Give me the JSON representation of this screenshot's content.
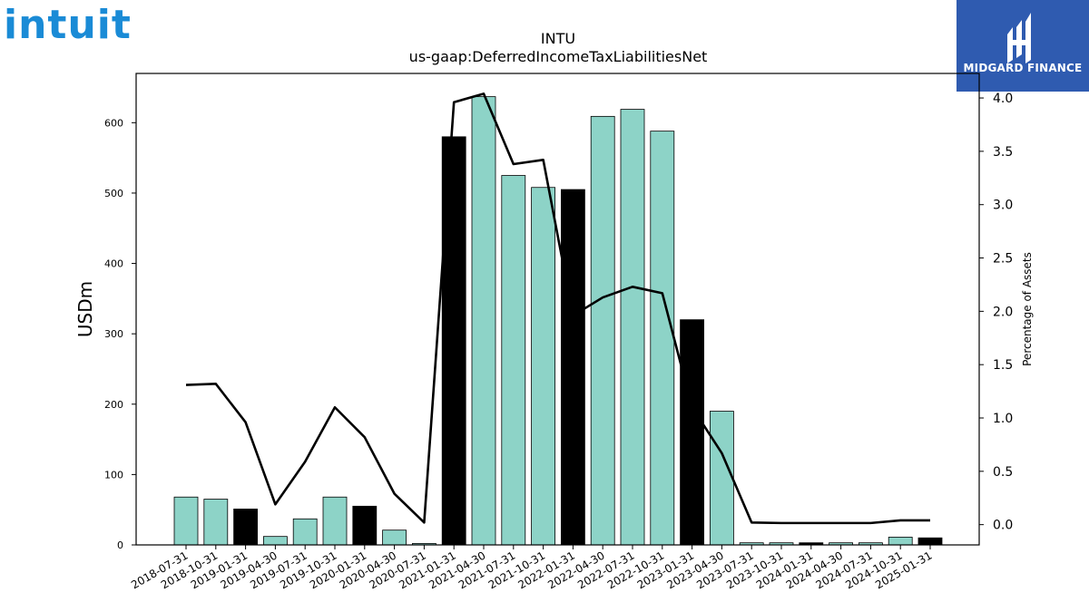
{
  "brand": {
    "left_logo_text": "intuit",
    "left_logo_color": "#1a8bd6",
    "right_logo_text": "MIDGARD FINANCE",
    "right_logo_bg": "#2f5bb0"
  },
  "chart_data": {
    "type": "bar",
    "title": "INTU",
    "subtitle": "us-gaap:DeferredIncomeTaxLiabilitiesNet",
    "ylabel": "USDm",
    "y2label": "Percentage of Assets",
    "ylim": [
      0,
      670
    ],
    "y2lim": [
      -0.19,
      4.23
    ],
    "yticks": [
      0,
      100,
      200,
      300,
      400,
      500,
      600
    ],
    "y2ticks": [
      0.0,
      0.5,
      1.0,
      1.5,
      2.0,
      2.5,
      3.0,
      3.5,
      4.0
    ],
    "bar_colors": {
      "default": "#8dd3c7",
      "highlight": "#000000"
    },
    "categories": [
      "2018-07-31",
      "2018-10-31",
      "2019-01-31",
      "2019-04-30",
      "2019-07-31",
      "2019-10-31",
      "2020-01-31",
      "2020-04-30",
      "2020-07-31",
      "2021-01-31",
      "2021-04-30",
      "2021-07-31",
      "2021-10-31",
      "2022-01-31",
      "2022-04-30",
      "2022-07-31",
      "2022-10-31",
      "2023-01-31",
      "2023-04-30",
      "2023-07-31",
      "2023-10-31",
      "2024-01-31",
      "2024-04-30",
      "2024-07-31",
      "2024-10-31",
      "2025-01-31"
    ],
    "values": [
      68,
      65,
      51,
      12,
      37,
      68,
      55,
      21,
      2,
      580,
      637,
      525,
      508,
      505,
      609,
      619,
      588,
      320,
      190,
      3,
      3,
      3,
      3,
      3,
      11,
      10
    ],
    "highlight": [
      false,
      false,
      true,
      false,
      false,
      false,
      true,
      false,
      false,
      true,
      false,
      false,
      false,
      true,
      false,
      false,
      false,
      true,
      false,
      false,
      false,
      true,
      false,
      false,
      false,
      true
    ],
    "series": [
      {
        "type": "line",
        "axis": "right",
        "values": [
          1.31,
          1.32,
          0.96,
          0.19,
          0.59,
          1.1,
          0.82,
          0.29,
          0.02,
          3.96,
          4.04,
          3.38,
          3.42,
          1.96,
          2.13,
          2.23,
          2.17,
          1.1,
          0.67,
          0.02,
          0.015,
          0.015,
          0.015,
          0.015,
          0.04,
          0.04
        ]
      }
    ]
  }
}
